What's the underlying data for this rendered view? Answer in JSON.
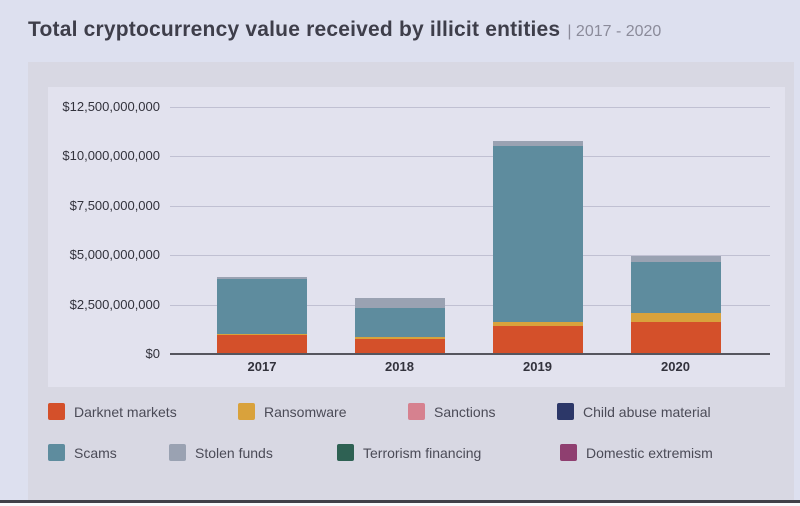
{
  "header": {
    "title": "Total cryptocurrency value received by illicit entities",
    "range": "| 2017 - 2020"
  },
  "colors": {
    "page_bg": "#dde0ef",
    "card_bg": "#d8d8e3",
    "panel_bg": "#e2e2ee",
    "grid_line": "#c0c0d2",
    "zero_line": "#55555e",
    "title_text": "#3e3e4a",
    "subtitle_text": "#8b8b9a",
    "tick_text": "#32323c",
    "legend_text": "#4b4b57"
  },
  "chart_data": {
    "type": "bar",
    "stacked": true,
    "title": "Total cryptocurrency value received by illicit entities | 2017 - 2020",
    "xlabel": "",
    "ylabel": "",
    "grid": true,
    "legend_position": "bottom",
    "ylim": [
      0,
      12500000000
    ],
    "categories": [
      "2017",
      "2018",
      "2019",
      "2020"
    ],
    "series": [
      {
        "name": "Darknet markets",
        "color": "#d4502a",
        "values": [
          900000000,
          720000000,
          1380000000,
          1580000000
        ]
      },
      {
        "name": "Ransomware",
        "color": "#d9a23c",
        "values": [
          40000000,
          100000000,
          200000000,
          440000000
        ]
      },
      {
        "name": "Sanctions",
        "color": "#d6818f",
        "values": [
          0,
          0,
          0,
          0
        ]
      },
      {
        "name": "Child abuse material",
        "color": "#2c3768",
        "values": [
          0,
          0,
          0,
          0
        ]
      },
      {
        "name": "Scams",
        "color": "#5e8c9e",
        "values": [
          2800000000,
          1450000000,
          8900000000,
          2600000000
        ]
      },
      {
        "name": "Stolen funds",
        "color": "#9aa2b2",
        "values": [
          130000000,
          510000000,
          240000000,
          270000000
        ]
      },
      {
        "name": "Terrorism financing",
        "color": "#2e6153",
        "values": [
          0,
          0,
          0,
          0
        ]
      },
      {
        "name": "Domestic extremism",
        "color": "#8f3f70",
        "values": [
          0,
          0,
          0,
          0
        ]
      }
    ],
    "totals": [
      3870000000,
      2780000000,
      10720000000,
      4890000000
    ],
    "y_ticks": [
      {
        "value": 0,
        "label": "$0"
      },
      {
        "value": 2500000000,
        "label": "$2,500,000,000"
      },
      {
        "value": 5000000000,
        "label": "$5,000,000,000"
      },
      {
        "value": 7500000000,
        "label": "$7,500,000,000"
      },
      {
        "value": 10000000000,
        "label": "$10,000,000,000"
      },
      {
        "value": 12500000000,
        "label": "$12,500,000,000"
      }
    ]
  }
}
